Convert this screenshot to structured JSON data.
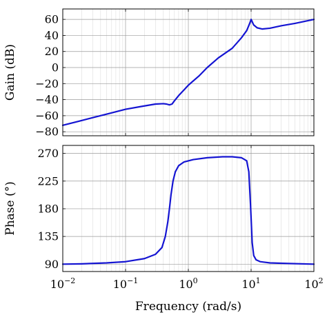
{
  "chart_data": [
    {
      "type": "line",
      "panel": "gain",
      "ylabel": "Gain (dB)",
      "xscale": "log",
      "xlim": [
        0.01,
        100
      ],
      "ylim": [
        -85,
        73
      ],
      "grid": true,
      "xtick_labels_shown": false,
      "yticks": [
        60,
        40,
        20,
        0,
        -20,
        -40,
        -60,
        -80
      ],
      "ytick_labels": [
        "60",
        "40",
        "20",
        "0",
        "−20",
        "−40",
        "−60",
        "−80"
      ],
      "series": [
        {
          "color": "#1414d2",
          "x": [
            0.01,
            0.0178,
            0.0316,
            0.0562,
            0.1,
            0.178,
            0.3,
            0.4,
            0.45,
            0.5,
            0.55,
            0.6,
            0.7,
            0.85,
            1,
            1.5,
            2,
            3,
            5,
            7,
            8.5,
            9.5,
            10,
            11,
            12.5,
            15,
            20,
            30,
            50,
            100
          ],
          "y": [
            -72,
            -67,
            -62,
            -57,
            -52,
            -48.5,
            -45.5,
            -45,
            -45.5,
            -46.5,
            -45.5,
            -41.5,
            -35,
            -28,
            -22,
            -10,
            0,
            12,
            24,
            37,
            46,
            55,
            60,
            53,
            49.5,
            48,
            49,
            52,
            55,
            60
          ]
        }
      ]
    },
    {
      "type": "line",
      "panel": "phase",
      "xlabel": "Frequency (rad/s)",
      "ylabel": "Phase (°)",
      "xscale": "log",
      "xlim": [
        0.01,
        100
      ],
      "ylim": [
        78,
        283
      ],
      "grid": true,
      "xticks": [
        0.01,
        0.1,
        1,
        10,
        100
      ],
      "xtick_labels": [
        {
          "base": "10",
          "exp": "−2"
        },
        {
          "base": "10",
          "exp": "−1"
        },
        {
          "base": "10",
          "exp": "0"
        },
        {
          "base": "10",
          "exp": "1"
        },
        {
          "base": "10",
          "exp": "2"
        }
      ],
      "yticks": [
        270,
        225,
        180,
        135,
        90
      ],
      "ytick_labels": [
        "270",
        "225",
        "180",
        "135",
        "90"
      ],
      "series": [
        {
          "color": "#1414d2",
          "x": [
            0.01,
            0.02,
            0.05,
            0.1,
            0.2,
            0.3,
            0.38,
            0.43,
            0.47,
            0.5,
            0.53,
            0.57,
            0.62,
            0.7,
            0.85,
            1.2,
            2,
            3.5,
            5,
            7,
            8.5,
            9.2,
            9.8,
            10.4,
            11,
            12,
            14,
            20,
            40,
            100
          ],
          "y": [
            90,
            90.5,
            92,
            94,
            99,
            106,
            117,
            135,
            158,
            180,
            203,
            225,
            240,
            250,
            256,
            260,
            263,
            264.5,
            264.5,
            263,
            258,
            240,
            185,
            125,
            104,
            97,
            94,
            92,
            91,
            90
          ]
        }
      ]
    }
  ]
}
